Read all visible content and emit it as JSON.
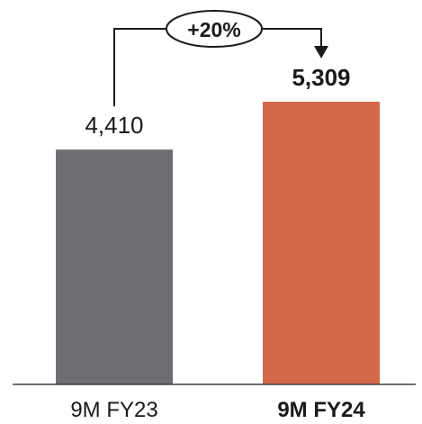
{
  "chart_data": {
    "type": "bar",
    "categories": [
      "9M FY23",
      "9M FY24"
    ],
    "values": [
      4410,
      5309
    ],
    "value_labels": [
      "4,410",
      "5,309"
    ],
    "bar_colors": [
      "#6d6e71",
      "#d4694a"
    ],
    "emphasized_category": "9M FY24",
    "annotation": {
      "text": "+20%",
      "from": "9M FY23",
      "to": "9M FY24"
    },
    "ylim": [
      0,
      6000
    ],
    "grid": false,
    "legend": "none"
  }
}
